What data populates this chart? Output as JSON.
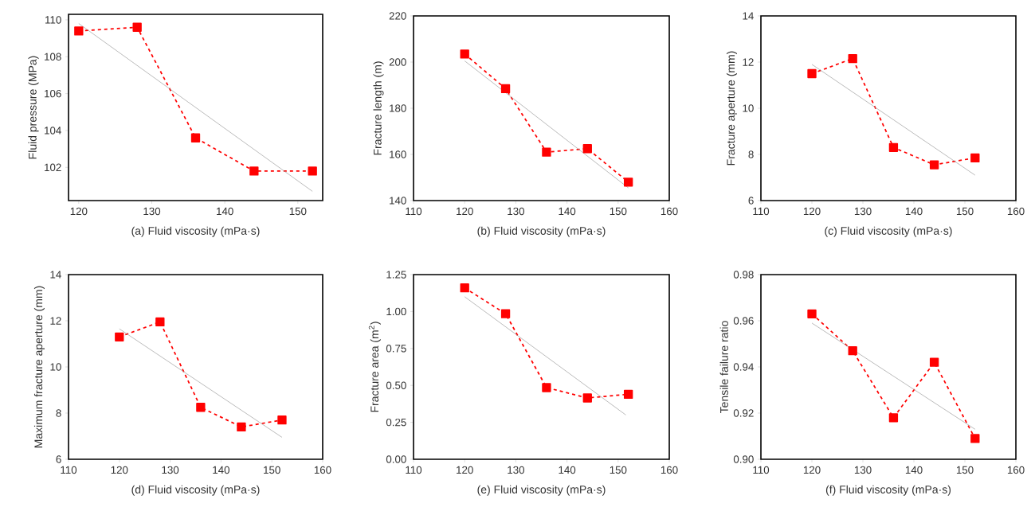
{
  "chart_data": [
    {
      "type": "line",
      "xlabel": "(a) Fluid viscosity (mPa·s)",
      "ylabel": "Fluid pressure (MPa)",
      "x": [
        120,
        128,
        136,
        144,
        152
      ],
      "xlim": [
        118.6,
        153.4
      ],
      "xticks": [
        120,
        130,
        140,
        150
      ],
      "ylim": [
        100.2,
        110.3
      ],
      "yticks": [
        102,
        104,
        106,
        108,
        110
      ],
      "marker": "square",
      "line_style": "dashed",
      "series": [
        {
          "color": "#ff0000",
          "values": [
            109.4,
            109.6,
            103.6,
            101.8,
            101.8
          ]
        },
        {
          "type": "line",
          "x": [
            120,
            152
          ],
          "values": [
            109.8,
            100.7
          ],
          "color": "#999999",
          "marker": "none",
          "line_style": "solid"
        }
      ]
    },
    {
      "type": "line",
      "xlabel": "(b) Fluid viscosity (mPa·s)",
      "ylabel": "Fracture length (m)",
      "x": [
        120,
        128,
        136,
        144,
        152
      ],
      "xlim": [
        110,
        160
      ],
      "xticks": [
        110,
        120,
        130,
        140,
        150,
        160
      ],
      "ylim": [
        140,
        220
      ],
      "yticks": [
        140,
        160,
        180,
        200,
        220
      ],
      "marker": "square",
      "line_style": "dashed",
      "series": [
        {
          "color": "#ff0000",
          "values": [
            203.5,
            188.5,
            161,
            162.5,
            148
          ]
        },
        {
          "type": "line",
          "x": [
            120,
            152
          ],
          "values": [
            200.5,
            145.5
          ],
          "color": "#999999",
          "marker": "none",
          "line_style": "solid"
        }
      ]
    },
    {
      "type": "line",
      "xlabel": "(c) Fluid viscosity (mPa·s)",
      "ylabel": "Fracture aperture (mm)",
      "x": [
        120,
        128,
        136,
        144,
        152
      ],
      "xlim": [
        110,
        160
      ],
      "xticks": [
        110,
        120,
        130,
        140,
        150,
        160
      ],
      "ylim": [
        6,
        14
      ],
      "yticks": [
        6,
        8,
        10,
        12,
        14
      ],
      "marker": "square",
      "line_style": "dashed",
      "series": [
        {
          "color": "#ff0000",
          "values": [
            11.5,
            12.15,
            8.3,
            7.55,
            7.85
          ]
        },
        {
          "type": "line",
          "x": [
            120,
            152
          ],
          "values": [
            11.9,
            7.1
          ],
          "color": "#999999",
          "marker": "none",
          "line_style": "solid"
        }
      ]
    },
    {
      "type": "line",
      "xlabel": "(d) Fluid viscosity (mPa·s)",
      "ylabel": "Maximum fracture aperture (mm)",
      "x": [
        120,
        128,
        136,
        144,
        152
      ],
      "xlim": [
        110,
        160
      ],
      "xticks": [
        110,
        120,
        130,
        140,
        150,
        160
      ],
      "ylim": [
        6,
        14
      ],
      "yticks": [
        6,
        8,
        10,
        12,
        14
      ],
      "marker": "square",
      "line_style": "dashed",
      "series": [
        {
          "color": "#ff0000",
          "values": [
            11.3,
            11.95,
            8.25,
            7.4,
            7.7
          ]
        },
        {
          "type": "line",
          "x": [
            120,
            152
          ],
          "values": [
            11.65,
            6.95
          ],
          "color": "#999999",
          "marker": "none",
          "line_style": "solid"
        }
      ]
    },
    {
      "type": "line",
      "xlabel": "(e) Fluid viscosity (mPa·s)",
      "ylabel": "Fracture area (m$^{2}$)",
      "x": [
        120,
        128,
        136,
        144,
        152
      ],
      "xlim": [
        110,
        160
      ],
      "xticks": [
        110,
        120,
        130,
        140,
        150,
        160
      ],
      "ylim": [
        0,
        1.25
      ],
      "yticks": [
        {
          "value": 0,
          "label": "0.00"
        },
        {
          "value": 0.25,
          "label": "0.25"
        },
        {
          "value": 0.5,
          "label": "0.50"
        },
        {
          "value": 0.75,
          "label": "0.75"
        },
        {
          "value": 1,
          "label": "1.00"
        },
        {
          "value": 1.25,
          "label": "1.25"
        }
      ],
      "marker": "square",
      "line_style": "dashed",
      "series": [
        {
          "color": "#ff0000",
          "values": [
            1.16,
            0.985,
            0.485,
            0.415,
            0.44
          ]
        },
        {
          "type": "line",
          "x": [
            120,
            151.5
          ],
          "values": [
            1.1,
            0.3
          ],
          "color": "#999999",
          "marker": "none",
          "line_style": "solid"
        }
      ]
    },
    {
      "type": "line",
      "xlabel": "(f) Fluid viscosity (mPa·s)",
      "ylabel": "Tensile failure ratio",
      "x": [
        120,
        128,
        136,
        144,
        152
      ],
      "xlim": [
        110,
        160
      ],
      "xticks": [
        110,
        120,
        130,
        140,
        150,
        160
      ],
      "ylim": [
        0.9,
        0.98
      ],
      "yticks": [
        {
          "value": 0.9,
          "label": "0.90"
        },
        {
          "value": 0.92,
          "label": "0.92"
        },
        {
          "value": 0.94,
          "label": "0.94"
        },
        {
          "value": 0.96,
          "label": "0.96"
        },
        {
          "value": 0.98,
          "label": "0.98"
        }
      ],
      "marker": "square",
      "line_style": "dashed",
      "series": [
        {
          "color": "#ff0000",
          "values": [
            0.963,
            0.947,
            0.918,
            0.942,
            0.909
          ]
        },
        {
          "type": "line",
          "x": [
            120,
            152
          ],
          "values": [
            0.959,
            0.913
          ],
          "color": "#999999",
          "marker": "none",
          "line_style": "solid"
        }
      ]
    }
  ]
}
